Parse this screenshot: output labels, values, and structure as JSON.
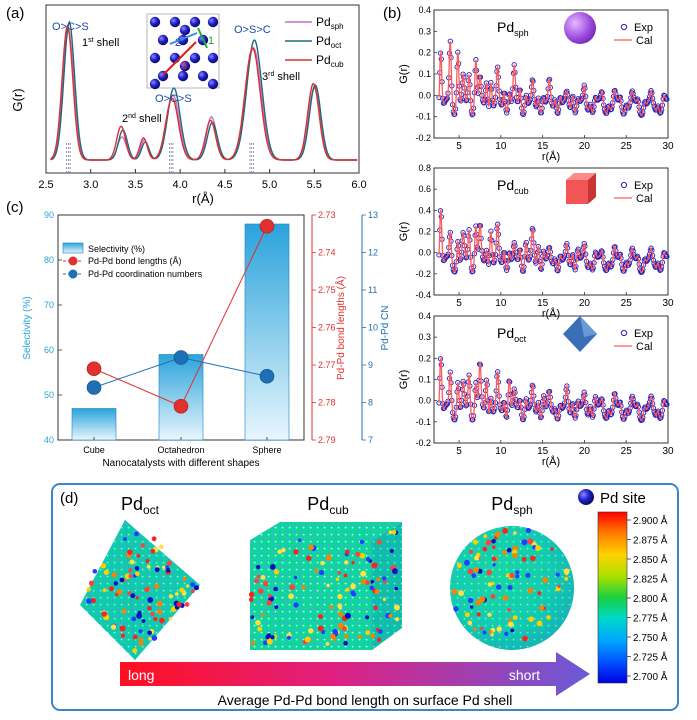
{
  "colors": {
    "sph": "#c070d0",
    "oct": "#1e6a7a",
    "cub": "#e03030",
    "exp": "#2020c0",
    "cal": "#ff5a5a",
    "bar": "#39a8d8",
    "cn": "#1f6fb5",
    "bond": "#e03030",
    "frame": "#3a86c8",
    "arrow_start": "#ff1020",
    "arrow_end": "#6a5ad8",
    "long_text": "#ffffff",
    "short_text": "#ffffff"
  },
  "panel_a": {
    "label": "(a)",
    "ylabel": "G(r)",
    "xlabel": "r(Å)",
    "xticks": [
      "2.5",
      "3.0",
      "3.5",
      "4.0",
      "4.5",
      "5.0",
      "5.5",
      "6.0"
    ],
    "legend": [
      {
        "name": "Pd",
        "sub": "sph",
        "color": "#c070d0"
      },
      {
        "name": "Pd",
        "sub": "oct",
        "color": "#1e6a7a"
      },
      {
        "name": "Pd",
        "sub": "cub",
        "color": "#e03030"
      }
    ],
    "ann_shell1_order": "O>C>S",
    "ann_shell1": "1",
    "ann_shell1_sup": "st",
    "ann_shell2_order": "O>C>S",
    "ann_shell2": "2",
    "ann_shell2_sup": "nd",
    "ann_shell3_order": "O>S>C",
    "ann_shell3": "3",
    "ann_shell3_sup": "rd",
    "shell_word": "shell",
    "cluster_labels": [
      "1",
      "2",
      "3"
    ],
    "peaks": [
      2.75,
      3.9,
      4.8
    ]
  },
  "panel_b": {
    "label": "(b)",
    "ylabel": "G(r)",
    "xlabel": "r(Å)",
    "legend_exp": "Exp",
    "legend_cal": "Cal",
    "xticks": [
      "5",
      "10",
      "15",
      "20",
      "25",
      "30"
    ],
    "xlim": [
      2,
      30
    ],
    "subplots": [
      {
        "name": "Pd",
        "sub": "sph",
        "shape": "sphere",
        "ylim": [
          -0.2,
          0.4
        ],
        "yticks": [
          "-0.2",
          "-0.1",
          "0.0",
          "0.1",
          "0.2",
          "0.3",
          "0.4"
        ],
        "amp": 0.3
      },
      {
        "name": "Pd",
        "sub": "cub",
        "shape": "cube",
        "ylim": [
          -0.4,
          0.8
        ],
        "yticks": [
          "-0.4",
          "-0.2",
          "0.0",
          "0.2",
          "0.4",
          "0.6",
          "0.8"
        ],
        "amp": 0.6
      },
      {
        "name": "Pd",
        "sub": "oct",
        "shape": "octahedron",
        "ylim": [
          -0.2,
          0.4
        ],
        "yticks": [
          "-0.2",
          "-0.1",
          "0.0",
          "0.1",
          "0.2",
          "0.3",
          "0.4"
        ],
        "amp": 0.3
      }
    ]
  },
  "panel_c": {
    "label": "(c)",
    "legend": [
      "Selectivity (%)",
      "Pd-Pd bond lengths (Å)",
      "Pd-Pd coordination numbers"
    ],
    "xlabel": "Nanocatalysts with different shapes",
    "ylabel_left": "Selectivity (%)",
    "ylabel_right1": "Pd-Pd bond lengths (Å)",
    "ylabel_right2": "Pd-Pd CN",
    "left_ticks": [
      "40",
      "50",
      "60",
      "70",
      "80",
      "90"
    ],
    "right1_ticks": [
      "2.73",
      "2.74",
      "2.75",
      "2.76",
      "2.77",
      "2.78",
      "2.79"
    ],
    "right2_ticks": [
      "7",
      "8",
      "9",
      "10",
      "11",
      "12",
      "13"
    ]
  },
  "chart_data": {
    "type": "bar",
    "title": "",
    "xlabel": "Nanocatalysts with different shapes",
    "categories": [
      "Cube",
      "Octahedron",
      "Sphere"
    ],
    "series": [
      {
        "name": "Selectivity (%)",
        "axis": "left",
        "values": [
          47,
          59,
          88
        ],
        "ylim": [
          40,
          90
        ]
      },
      {
        "name": "Pd-Pd bond lengths (Å)",
        "axis": "right1",
        "values": [
          2.771,
          2.781,
          2.733
        ],
        "ylim": [
          2.79,
          2.73
        ]
      },
      {
        "name": "Pd-Pd coordination numbers",
        "axis": "right2",
        "values": [
          8.4,
          9.2,
          8.7
        ],
        "ylim": [
          7,
          13
        ]
      }
    ]
  },
  "panel_d": {
    "label": "(d)",
    "titles": [
      {
        "name": "Pd",
        "sub": "oct"
      },
      {
        "name": "Pd",
        "sub": "cub"
      },
      {
        "name": "Pd",
        "sub": "sph"
      }
    ],
    "site_legend": "Pd site",
    "colorbar": [
      "2.900 Å",
      "2.875 Å",
      "2.850 Å",
      "2.825 Å",
      "2.800 Å",
      "2.775 Å",
      "2.750 Å",
      "2.725 Å",
      "2.700 Å"
    ],
    "arrow_long": "long",
    "arrow_short": "short",
    "caption": "Average Pd-Pd bond length on surface Pd shell"
  }
}
